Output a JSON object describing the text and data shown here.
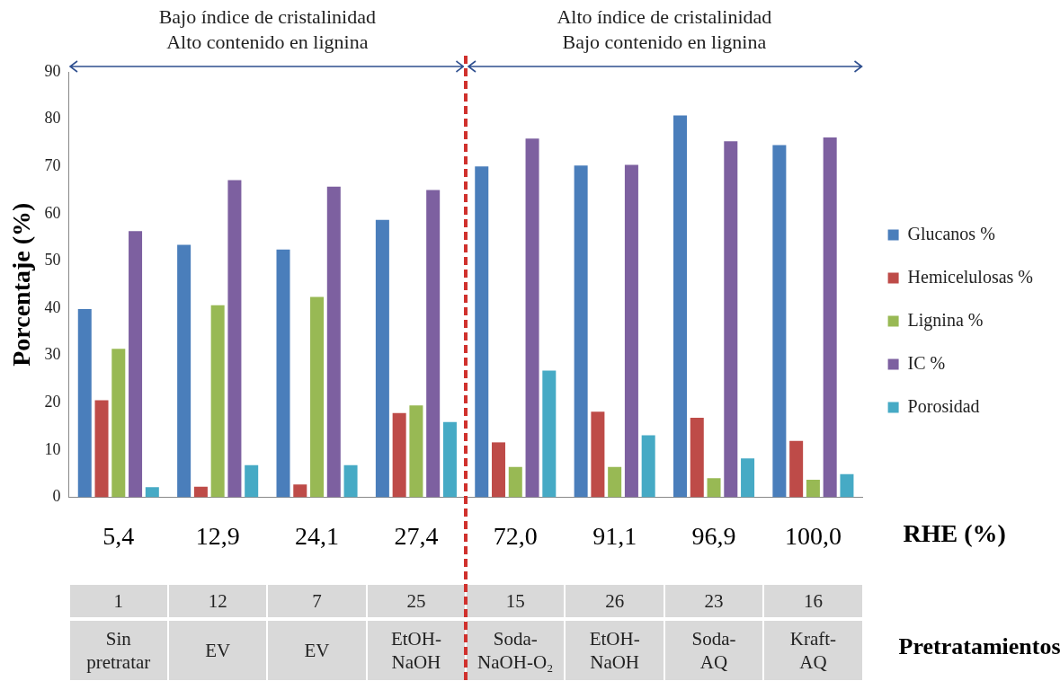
{
  "chart_data": {
    "type": "bar",
    "ylabel": "Porcentaje (%)",
    "xlabel": "RHE (%)",
    "categories": [
      "5,4",
      "12,9",
      "24,1",
      "27,4",
      "72,0",
      "91,1",
      "96,9",
      "100,0"
    ],
    "series": [
      {
        "name": "Glucanos %",
        "color": "#4a7ebb",
        "values": [
          39.8,
          53.4,
          52.4,
          58.7,
          70.0,
          70.2,
          80.8,
          74.5
        ]
      },
      {
        "name": "Hemicelulosas %",
        "color": "#be4b48",
        "values": [
          20.5,
          2.2,
          2.7,
          17.8,
          11.6,
          18.1,
          16.8,
          11.9
        ]
      },
      {
        "name": "Lignina %",
        "color": "#98b954",
        "values": [
          31.4,
          40.6,
          42.4,
          19.4,
          6.4,
          6.4,
          4.0,
          3.7
        ]
      },
      {
        "name": "IC %",
        "color": "#7d60a0",
        "values": [
          56.3,
          67.1,
          65.7,
          65.0,
          75.9,
          70.3,
          75.3,
          76.1
        ]
      },
      {
        "name": "Porosidad",
        "color": "#46aac5",
        "values": [
          2.1,
          6.8,
          6.8,
          15.9,
          26.8,
          13.1,
          8.2,
          4.9
        ]
      }
    ],
    "ylim": [
      0,
      90
    ],
    "yticks": [
      0,
      10,
      20,
      30,
      40,
      50,
      60,
      70,
      80,
      90
    ],
    "grid": false,
    "legend": "right",
    "annotations": [
      "Bajo índice de cristalinidad",
      "Alto contenido en lignina",
      "Alto índice de cristalinidad",
      "Bajo contenido en lignina",
      "Pretratamientos",
      "1",
      "12",
      "7",
      "25",
      "15",
      "26",
      "23",
      "16",
      "Sin pretratar",
      "EV",
      "EV",
      "EtOH-NaOH",
      "Soda-NaOH-O₂",
      "EtOH-NaOH",
      "Soda-AQ",
      "Kraft-AQ"
    ]
  }
}
